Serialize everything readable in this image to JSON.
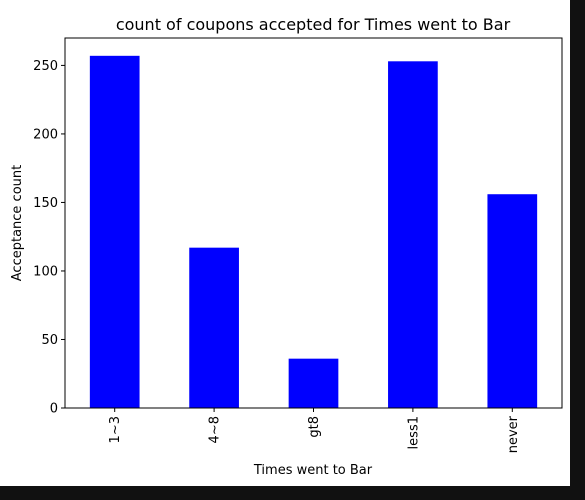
{
  "chart_data": {
    "type": "bar",
    "title": "count of coupons accepted for Times went to Bar",
    "xlabel": "Times went to Bar",
    "ylabel": "Acceptance count",
    "categories": [
      "1~3",
      "4~8",
      "gt8",
      "less1",
      "never"
    ],
    "values": [
      257,
      117,
      36,
      253,
      156
    ],
    "ylim": [
      0,
      270
    ],
    "yticks": [
      0,
      50,
      100,
      150,
      200,
      250
    ],
    "bar_color": "#0000ff",
    "grid": false,
    "legend": "none"
  }
}
